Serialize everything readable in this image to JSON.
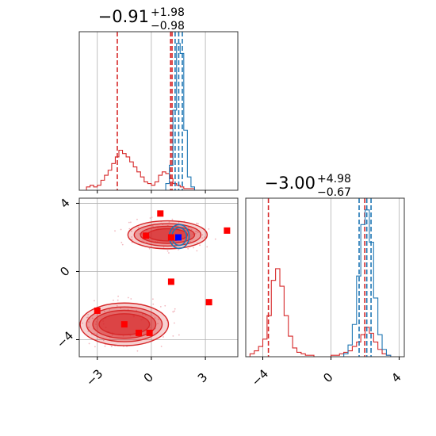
{
  "chart_data": [
    {
      "type": "histogram",
      "panel": "top-left",
      "title": {
        "median": "−0.91",
        "upper": "+1.98",
        "lower": "−0.98"
      },
      "x": [
        -4.0,
        -3.8,
        -3.6,
        -3.4,
        -3.2,
        -3.0,
        -2.8,
        -2.6,
        -2.4,
        -2.2,
        -2.0,
        -1.8,
        -1.6,
        -1.4,
        -1.2,
        -1.0,
        -0.8,
        -0.6,
        -0.4,
        -0.2,
        0.0,
        0.2,
        0.4,
        0.6,
        0.8,
        1.0,
        1.2,
        1.4,
        1.6,
        1.8,
        2.0,
        2.2,
        2.4,
        2.6,
        2.8,
        3.0,
        3.2,
        3.4,
        3.6,
        3.8,
        4.0,
        4.2,
        4.4
      ],
      "xlim": [
        -4.0,
        4.8
      ],
      "xticks": [
        -3,
        0,
        3
      ],
      "grid": true,
      "series": [
        {
          "color": "#d62728",
          "values": [
            0,
            0,
            0.02,
            0.03,
            0.02,
            0.03,
            0.06,
            0.09,
            0.12,
            0.16,
            0.2,
            0.24,
            0.22,
            0.2,
            0.17,
            0.14,
            0.11,
            0.08,
            0.05,
            0.04,
            0.03,
            0.05,
            0.09,
            0.11,
            0.1,
            0.07,
            0.04,
            0.03,
            0.02,
            0.01,
            0.01,
            0.01,
            0,
            0,
            0,
            0,
            0,
            0,
            0,
            0,
            0,
            0
          ],
          "lines": [
            -1.89,
            1.07,
            1.15
          ]
        },
        {
          "color": "#1f77b4",
          "values": [
            0,
            0,
            0,
            0,
            0,
            0,
            0,
            0,
            0,
            0,
            0,
            0,
            0,
            0,
            0,
            0,
            0,
            0,
            0,
            0,
            0,
            0,
            0,
            0,
            0.04,
            0.15,
            0.48,
            0.88,
            0.82,
            0.36,
            0.08,
            0.02,
            0,
            0,
            0,
            0,
            0,
            0,
            0,
            0,
            0,
            0
          ],
          "lines": [
            1.32,
            1.52,
            1.72
          ]
        }
      ]
    },
    {
      "type": "histogram",
      "panel": "bottom-right",
      "title": {
        "median": "−3.00",
        "upper": "+4.98",
        "lower": "−0.67"
      },
      "x": [
        -5.0,
        -4.75,
        -4.5,
        -4.25,
        -4.0,
        -3.75,
        -3.5,
        -3.25,
        -3.0,
        -2.75,
        -2.5,
        -2.25,
        -2.0,
        -1.75,
        -1.5,
        -1.25,
        -1.0,
        -0.75,
        -0.5,
        -0.25,
        0.0,
        0.25,
        0.5,
        0.75,
        1.0,
        1.25,
        1.5,
        1.75,
        2.0,
        2.25,
        2.5,
        2.75,
        3.0,
        3.25,
        3.5,
        3.75,
        4.0
      ],
      "xlim": [
        -5.0,
        4.3
      ],
      "xticks": [
        -4,
        0,
        4
      ],
      "grid": true,
      "series": [
        {
          "color": "#d62728",
          "values": [
            0,
            0.02,
            0.04,
            0.07,
            0.12,
            0.28,
            0.52,
            0.6,
            0.48,
            0.28,
            0.14,
            0.06,
            0.03,
            0.02,
            0.01,
            0.01,
            0,
            0,
            0,
            0,
            0.01,
            0.01,
            0.02,
            0.03,
            0.04,
            0.07,
            0.1,
            0.15,
            0.2,
            0.16,
            0.1,
            0.05,
            0.02,
            0.01,
            0,
            0
          ],
          "lines": [
            -3.67,
            1.98
          ]
        },
        {
          "color": "#1f77b4",
          "values": [
            0,
            0,
            0,
            0,
            0,
            0,
            0,
            0,
            0,
            0,
            0,
            0,
            0,
            0,
            0,
            0,
            0,
            0,
            0,
            0,
            0,
            0,
            0,
            0.02,
            0.08,
            0.22,
            0.55,
            0.9,
            1.0,
            0.78,
            0.4,
            0.15,
            0.05,
            0.01,
            0,
            0
          ],
          "lines": [
            1.65,
            2.1,
            2.35
          ]
        }
      ]
    },
    {
      "type": "scatter",
      "panel": "bottom-left",
      "xlim": [
        -4.0,
        4.8
      ],
      "ylim": [
        -5.0,
        4.3
      ],
      "xticks": [
        -3,
        0,
        3
      ],
      "yticks": [
        -4,
        0,
        4
      ],
      "grid": true,
      "contours": [
        {
          "color": "#d62728",
          "center": [
            -1.5,
            -3.1
          ],
          "levels": [
            [
              2.45,
              1.25
            ],
            [
              2.1,
              1.02
            ],
            [
              1.75,
              0.82
            ],
            [
              1.4,
              0.62
            ]
          ]
        },
        {
          "color": "#d62728",
          "center": [
            0.9,
            2.15
          ],
          "levels": [
            [
              2.2,
              0.82
            ],
            [
              1.85,
              0.66
            ],
            [
              1.5,
              0.5
            ],
            [
              1.1,
              0.36
            ]
          ]
        },
        {
          "color": "#1f77b4",
          "center": [
            1.55,
            2.05
          ],
          "levels": [
            [
              0.55,
              0.7
            ],
            [
              0.4,
              0.52
            ]
          ]
        }
      ],
      "points_red": [
        [
          -3.0,
          -2.3
        ],
        [
          -1.5,
          -3.1
        ],
        [
          -0.7,
          -3.6
        ],
        [
          -0.1,
          -3.6
        ],
        [
          0.5,
          3.4
        ],
        [
          -0.3,
          2.1
        ],
        [
          1.1,
          2.0
        ],
        [
          1.1,
          -0.6
        ],
        [
          3.2,
          -1.8
        ],
        [
          4.2,
          2.4
        ]
      ],
      "points_blue": [
        [
          1.5,
          2.0
        ]
      ]
    }
  ]
}
